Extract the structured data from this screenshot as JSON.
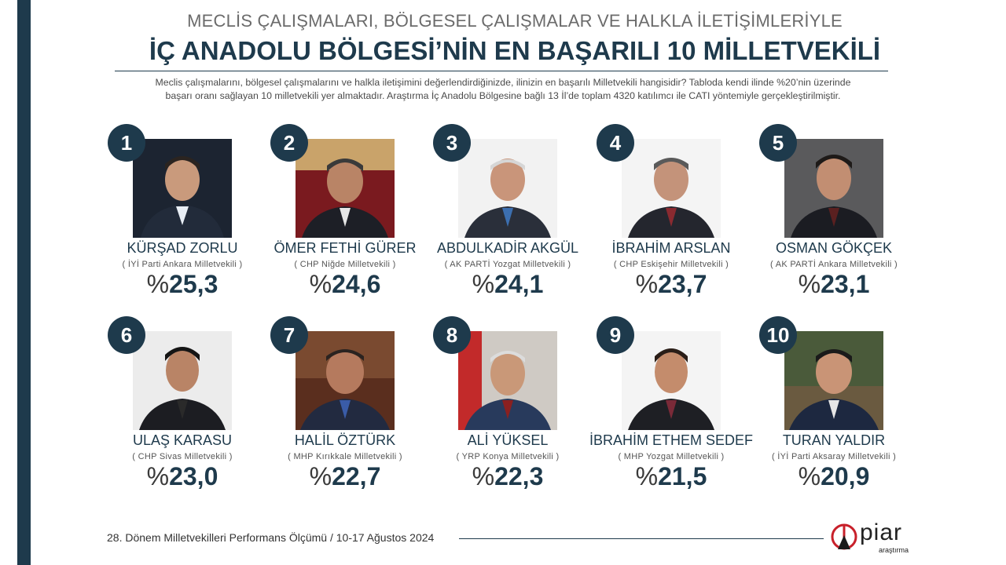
{
  "header": {
    "top": "MECLİS ÇALIŞMALARI, BÖLGESEL ÇALIŞMALAR VE HALKLA İLETİŞİMLERİYLE",
    "main": "İÇ ANADOLU BÖLGESİ’NİN EN BAŞARILI 10 MİLLETVEKİLİ"
  },
  "intro": {
    "line1": "Meclis çalışmalarını, bölgesel çalışmalarını  ve halkla iletişimini değerlendirdiğinizde, ilinizin en başarılı Milletvekili hangisidir? Tabloda kendi ilinde %20’nin üzerinde",
    "line2": "başarı oranı sağlayan 10 milletvekili yer almaktadır. Araştırma İç Anadolu Bölgesine bağlı 13 İl’de toplam 4320 katılımcı ile  CATI yöntemiyle gerçekleştirilmiştir."
  },
  "candidates": [
    {
      "rank": "1",
      "name": "KÜRŞAD ZORLU",
      "party": "( İYİ Parti Ankara Milletvekili )",
      "value": "25,3"
    },
    {
      "rank": "2",
      "name": "ÖMER FETHİ GÜRER",
      "party": "( CHP Niğde Milletvekili )",
      "value": "24,6"
    },
    {
      "rank": "3",
      "name": "ABDULKADİR AKGÜL",
      "party": "( AK PARTİ Yozgat Milletvekili )",
      "value": "24,1"
    },
    {
      "rank": "4",
      "name": "İBRAHİM ARSLAN",
      "party": "( CHP Eskişehir Milletvekili )",
      "value": "23,7"
    },
    {
      "rank": "5",
      "name": "OSMAN GÖKÇEK",
      "party": "( AK PARTİ Ankara Milletvekili )",
      "value": "23,1"
    },
    {
      "rank": "6",
      "name": "ULAŞ KARASU",
      "party": "( CHP Sivas Milletvekili )",
      "value": "23,0"
    },
    {
      "rank": "7",
      "name": "HALİL ÖZTÜRK",
      "party": "( MHP Kırıkkale Milletvekili )",
      "value": "22,7"
    },
    {
      "rank": "8",
      "name": "ALİ YÜKSEL",
      "party": "( YRP Konya Milletvekili )",
      "value": "22,3"
    },
    {
      "rank": "9",
      "name": "İBRAHİM ETHEM SEDEF",
      "party": "( MHP Yozgat Milletvekili )",
      "value": "21,5"
    },
    {
      "rank": "10",
      "name": "TURAN YALDIR",
      "party": "( İYİ Parti Aksaray Milletvekili )",
      "value": "20,9"
    }
  ],
  "percent_symbol": "%",
  "footer": {
    "text": "28. Dönem Milletvekilleri Performans Ölçümü / 10-17 Ağustos 2024",
    "logo_word": "piar",
    "logo_sub": "araştırma"
  },
  "colors": {
    "navy": "#1e3a4c",
    "logo_red": "#c8202a"
  }
}
